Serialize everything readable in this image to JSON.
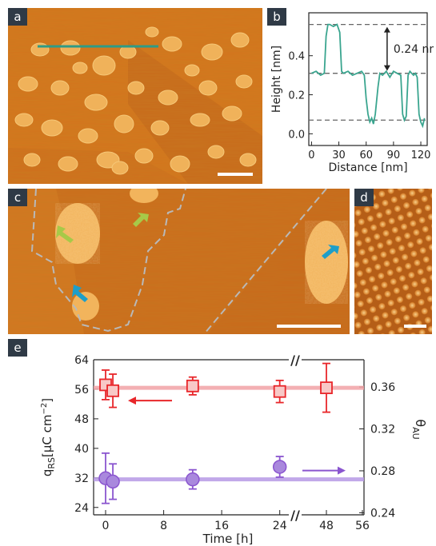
{
  "panels": {
    "a": {
      "label": "a"
    },
    "b": {
      "label": "b"
    },
    "c": {
      "label": "c"
    },
    "d": {
      "label": "d"
    },
    "e": {
      "label": "e"
    }
  },
  "chart_data": [
    {
      "panel": "b",
      "type": "line",
      "xlabel": "Distance [nm]",
      "ylabel": "Height [nm]",
      "xlim": [
        -3,
        127
      ],
      "ylim": [
        -0.06,
        0.62
      ],
      "xticks": [
        0,
        30,
        60,
        90,
        120
      ],
      "yticks": [
        0.0,
        0.2,
        0.4
      ],
      "reference_lines_y": [
        0.07,
        0.31,
        0.56
      ],
      "annotation": "0.24 nm",
      "line_color": "#3aa58f",
      "series": [
        {
          "x": [
            0,
            5,
            10,
            14,
            16,
            18,
            20,
            24,
            28,
            31,
            33,
            35,
            40,
            45,
            50,
            55,
            58,
            60,
            62,
            64,
            66,
            68,
            70,
            73,
            75,
            78,
            82,
            86,
            90,
            94,
            98,
            100,
            102,
            104,
            106,
            108,
            110,
            112,
            114,
            116,
            118,
            120,
            122,
            124
          ],
          "y": [
            0.31,
            0.32,
            0.3,
            0.31,
            0.5,
            0.56,
            0.56,
            0.55,
            0.56,
            0.52,
            0.32,
            0.31,
            0.32,
            0.3,
            0.31,
            0.32,
            0.3,
            0.18,
            0.1,
            0.06,
            0.08,
            0.05,
            0.1,
            0.24,
            0.31,
            0.3,
            0.32,
            0.29,
            0.32,
            0.31,
            0.3,
            0.1,
            0.07,
            0.09,
            0.3,
            0.32,
            0.31,
            0.3,
            0.31,
            0.29,
            0.1,
            0.06,
            0.04,
            0.08
          ]
        }
      ]
    },
    {
      "panel": "e",
      "type": "scatter",
      "xlabel": "Time [h]",
      "ylabel_left": "q",
      "ylabel_left_sub": "RS",
      "ylabel_left_unit": "[μC cm",
      "ylabel_left_sup": "−2",
      "ylabel_left_close": "]",
      "ylabel_right": "θ",
      "ylabel_right_sub": "AU",
      "ylim_left": [
        22,
        64
      ],
      "yticks_left": [
        24,
        32,
        40,
        48,
        56,
        64
      ],
      "ylim_right": [
        0.238,
        0.386
      ],
      "yticks_right": [
        0.24,
        0.28,
        0.32,
        0.36
      ],
      "xticks": [
        "0",
        "8",
        "16",
        "24",
        "48",
        "56"
      ],
      "axis_break": "//",
      "series": [
        {
          "marker": "square",
          "color": "#e8262a",
          "fit_value": 56.4,
          "fit_color": "#f2a3a6",
          "axis": "left",
          "points": [
            {
              "t": 0,
              "y": 57.2,
              "err": 4.0
            },
            {
              "t": 1,
              "y": 55.6,
              "err": 4.5
            },
            {
              "t": 12,
              "y": 56.9,
              "err": 2.4
            },
            {
              "t": 24,
              "y": 55.4,
              "err": 3.0
            },
            {
              "t": 48,
              "y": 56.4,
              "err": 6.6
            }
          ]
        },
        {
          "marker": "circle",
          "color": "#8a55cf",
          "fit_value": 31.6,
          "fit_color": "#b79ae6",
          "axis": "left",
          "points": [
            {
              "t": 0,
              "y": 31.9,
              "err": 6.8
            },
            {
              "t": 1,
              "y": 31.0,
              "err": 4.8
            },
            {
              "t": 12,
              "y": 31.6,
              "err": 2.6
            },
            {
              "t": 24,
              "y": 35.0,
              "err": 2.8
            }
          ]
        }
      ]
    }
  ]
}
